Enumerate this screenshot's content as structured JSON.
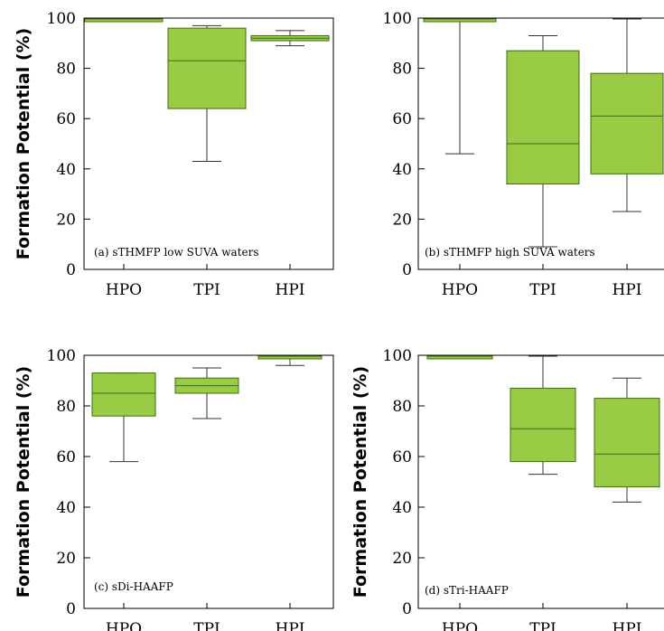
{
  "colors": {
    "box_fill": "#99cc44",
    "box_stroke": "#3f6b10",
    "axis": "#000000"
  },
  "chart_data": [
    {
      "type": "box",
      "ylabel": "Formation Potential (%)",
      "annotation": "(a) sTHMFP low SUVA waters",
      "ylim": [
        0,
        100
      ],
      "yticks": [
        0,
        20,
        40,
        60,
        80,
        100
      ],
      "grid": false,
      "categories": [
        "HPO",
        "TPI",
        "HPI"
      ],
      "boxes": [
        {
          "category": "HPO",
          "min": 99,
          "q1": 99,
          "median": 100,
          "q3": 101,
          "max": 101
        },
        {
          "category": "TPI",
          "min": 43,
          "q1": 64,
          "median": 83,
          "q3": 96,
          "max": 97
        },
        {
          "category": "HPI",
          "min": 89,
          "q1": 91,
          "median": 92,
          "q3": 93,
          "max": 95
        }
      ]
    },
    {
      "type": "box",
      "ylabel": "",
      "annotation": "(b) sTHMFP high SUVA waters",
      "ylim": [
        0,
        100
      ],
      "yticks": [
        0,
        20,
        40,
        60,
        80,
        100
      ],
      "grid": false,
      "categories": [
        "HPO",
        "TPI",
        "HPI"
      ],
      "boxes": [
        {
          "category": "HPO",
          "min": 46,
          "q1": 99,
          "median": 100,
          "q3": 101,
          "max": 101
        },
        {
          "category": "TPI",
          "min": 9,
          "q1": 34,
          "median": 50,
          "q3": 87,
          "max": 93
        },
        {
          "category": "HPI",
          "min": 23,
          "q1": 38,
          "median": 61,
          "q3": 78,
          "max": 100
        }
      ]
    },
    {
      "type": "box",
      "ylabel": "Formation Potential (%)",
      "annotation": "(c) sDi-HAAFP",
      "ylim": [
        0,
        100
      ],
      "yticks": [
        0,
        20,
        40,
        60,
        80,
        100
      ],
      "grid": false,
      "categories": [
        "HPO",
        "TPI",
        "HPI"
      ],
      "boxes": [
        {
          "category": "HPO",
          "min": 58,
          "q1": 76,
          "median": 85,
          "q3": 93,
          "max": 93
        },
        {
          "category": "TPI",
          "min": 75,
          "q1": 85,
          "median": 88,
          "q3": 91,
          "max": 95
        },
        {
          "category": "HPI",
          "min": 96,
          "q1": 99,
          "median": 100,
          "q3": 101,
          "max": 101
        }
      ]
    },
    {
      "type": "box",
      "ylabel": "Formation Potential (%)",
      "annotation": "(d) sTri-HAAFP",
      "ylim": [
        0,
        100
      ],
      "yticks": [
        0,
        20,
        40,
        60,
        80,
        100
      ],
      "grid": false,
      "categories": [
        "HPO",
        "TPI",
        "HPI"
      ],
      "boxes": [
        {
          "category": "HPO",
          "min": 99,
          "q1": 99,
          "median": 100,
          "q3": 101,
          "max": 101
        },
        {
          "category": "TPI",
          "min": 53,
          "q1": 58,
          "median": 71,
          "q3": 87,
          "max": 100
        },
        {
          "category": "HPI",
          "min": 42,
          "q1": 48,
          "median": 61,
          "q3": 83,
          "max": 91
        }
      ]
    }
  ]
}
